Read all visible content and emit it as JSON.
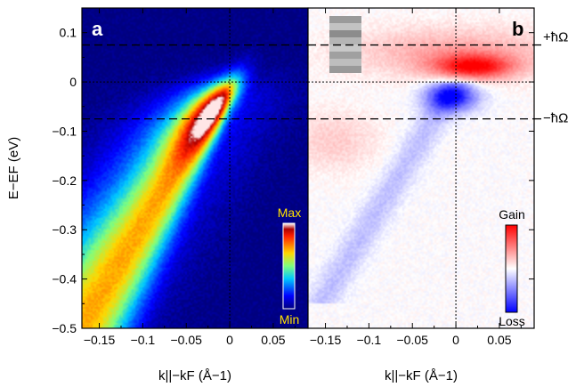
{
  "chart_data": [
    {
      "type": "heatmap",
      "panel_label": "a",
      "xlabel": "k||−kF (Å−1)",
      "ylabel": "E−EF (eV)",
      "xlim": [
        -0.17,
        0.09
      ],
      "ylim": [
        -0.5,
        0.15
      ],
      "x_ticks": [
        -0.15,
        -0.1,
        -0.05,
        0,
        0.05
      ],
      "x_tick_labels": [
        "−0.15",
        "−0.1",
        "−0.05",
        "0",
        "0.05"
      ],
      "y_ticks": [
        0.1,
        0,
        -0.1,
        -0.2,
        -0.3,
        -0.4,
        -0.5
      ],
      "y_tick_labels": [
        "0.1",
        "0",
        "−0.1",
        "−0.2",
        "−0.3",
        "−0.4",
        "−0.5"
      ],
      "reference_lines": {
        "dashed_y": [
          0.075,
          -0.075
        ],
        "dotted_y": [
          0
        ],
        "dotted_x": [
          0
        ]
      },
      "colorbar": {
        "max_label": "Max",
        "min_label": "Min",
        "colormap": "jet"
      },
      "band": {
        "kF_energy": 0,
        "slope_eV_per_inv_A": 2.9,
        "peak": {
          "x": -0.035,
          "y": -0.05
        }
      }
    },
    {
      "type": "heatmap",
      "panel_label": "b",
      "xlabel": "k||−kF (Å−1)",
      "xlim": [
        -0.17,
        0.09
      ],
      "ylim": [
        -0.5,
        0.15
      ],
      "x_ticks": [
        -0.15,
        -0.1,
        -0.05,
        0,
        0.05
      ],
      "x_tick_labels": [
        "−0.15",
        "−0.1",
        "−0.05",
        "0",
        "0.05"
      ],
      "reference_lines": {
        "dashed_y": [
          0.075,
          -0.075
        ],
        "dotted_y": [
          0
        ],
        "dotted_x": [
          0
        ]
      },
      "colorbar": {
        "max_label": "Gain",
        "min_label": "Loss",
        "colormap": "blue-white-red"
      },
      "features": {
        "gain_peak": {
          "x": 0.02,
          "y": 0.03
        },
        "loss_peak": {
          "x": -0.005,
          "y": -0.03
        }
      }
    }
  ],
  "annotations": {
    "plus_label": "+ħΩ",
    "minus_label": "−ħΩ"
  },
  "colors": {
    "dark_blue": "#000080",
    "gain_red": "#e8202a",
    "loss_blue": "#1a2ee8"
  }
}
